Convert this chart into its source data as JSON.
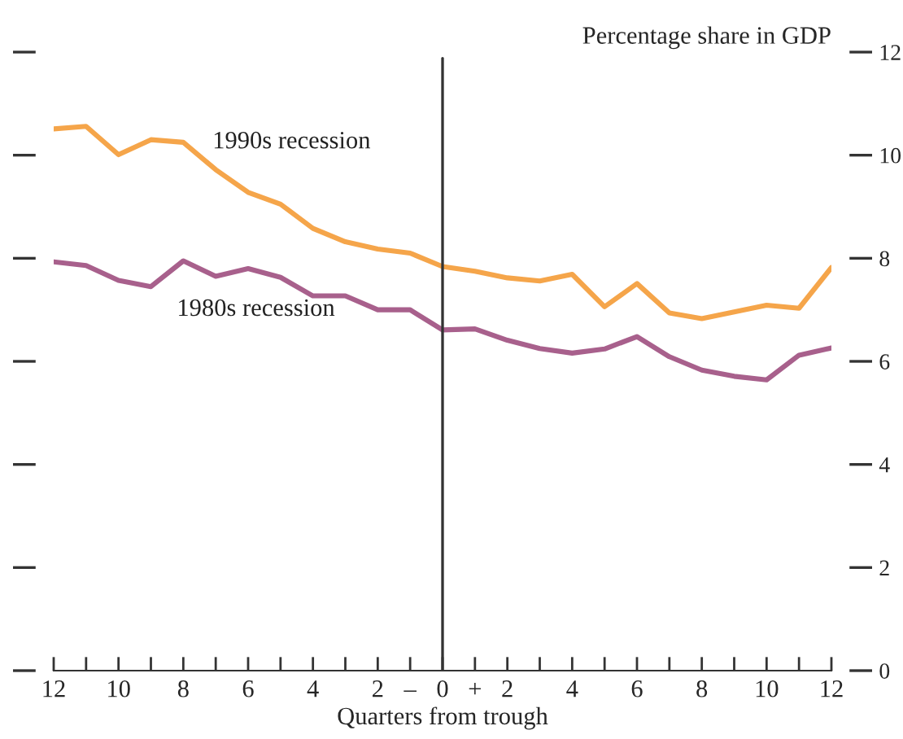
{
  "chart_data": {
    "type": "line",
    "ylabel": "Percentage share in GDP",
    "xlabel": "Quarters from trough",
    "x": [
      -12,
      -11,
      -10,
      -9,
      -8,
      -7,
      -6,
      -5,
      -4,
      -3,
      -2,
      -1,
      0,
      1,
      2,
      3,
      4,
      5,
      6,
      7,
      8,
      9,
      10,
      11,
      12
    ],
    "series": [
      {
        "name": "1990s recession",
        "color": "#f5a54a",
        "values": [
          10.51,
          10.56,
          10.01,
          10.3,
          10.25,
          9.72,
          9.28,
          9.05,
          8.58,
          8.32,
          8.18,
          8.1,
          7.84,
          7.75,
          7.62,
          7.56,
          7.69,
          7.06,
          7.51,
          6.94,
          6.83,
          6.96,
          7.09,
          7.03,
          7.82
        ]
      },
      {
        "name": "1980s recession",
        "color": "#a8608c",
        "values": [
          7.93,
          7.86,
          7.57,
          7.45,
          7.95,
          7.65,
          7.8,
          7.63,
          7.27,
          7.27,
          7.0,
          7.0,
          6.61,
          6.63,
          6.41,
          6.25,
          6.16,
          6.24,
          6.48,
          6.09,
          5.83,
          5.71,
          5.64,
          6.12,
          6.26
        ]
      }
    ],
    "xlim": [
      -12,
      12
    ],
    "ylim": [
      0,
      12
    ],
    "yticks": [
      0,
      2,
      4,
      6,
      8,
      10,
      12
    ],
    "xticks": [
      {
        "value": -12,
        "label": "12"
      },
      {
        "value": -11,
        "label": null
      },
      {
        "value": -10,
        "label": "10"
      },
      {
        "value": -9,
        "label": null
      },
      {
        "value": -8,
        "label": "8"
      },
      {
        "value": -7,
        "label": null
      },
      {
        "value": -6,
        "label": "6"
      },
      {
        "value": -5,
        "label": null
      },
      {
        "value": -4,
        "label": "4"
      },
      {
        "value": -3,
        "label": null
      },
      {
        "value": -2,
        "label": "2"
      },
      {
        "value": -1,
        "label": "–"
      },
      {
        "value": 0,
        "label": "0"
      },
      {
        "value": 1,
        "label": "+"
      },
      {
        "value": 2,
        "label": "2"
      },
      {
        "value": 3,
        "label": null
      },
      {
        "value": 4,
        "label": "4"
      },
      {
        "value": 5,
        "label": null
      },
      {
        "value": 6,
        "label": "6"
      },
      {
        "value": 7,
        "label": null
      },
      {
        "value": 8,
        "label": "8"
      },
      {
        "value": 9,
        "label": null
      },
      {
        "value": 10,
        "label": "10"
      },
      {
        "value": 11,
        "label": null
      },
      {
        "value": 12,
        "label": "12"
      }
    ],
    "ref_lines": [
      {
        "axis": "x",
        "value": 0,
        "color": "#333333"
      }
    ],
    "grid": false,
    "legend": false,
    "marker": "none",
    "line_style": "solid"
  }
}
